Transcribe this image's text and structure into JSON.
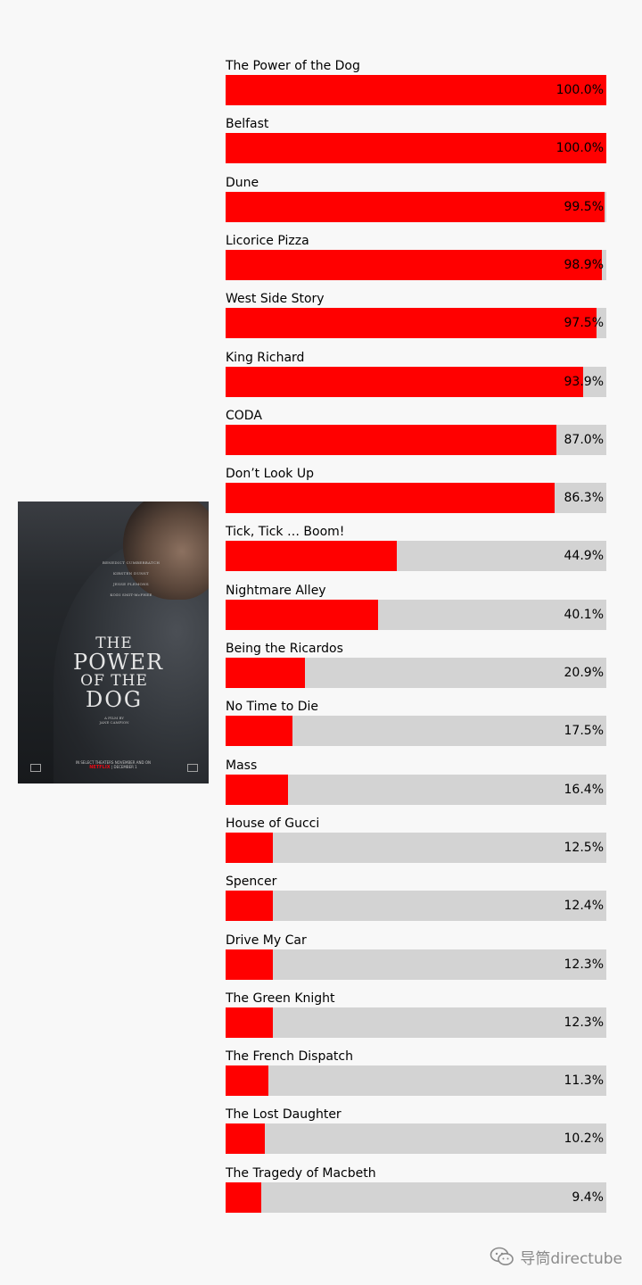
{
  "chart_data": {
    "type": "bar",
    "orientation": "horizontal",
    "categories": [
      "The Power of the Dog",
      "Belfast",
      "Dune",
      "Licorice Pizza",
      "West Side Story",
      "King Richard",
      "CODA",
      "Don’t Look Up",
      "Tick, Tick … Boom!",
      "Nightmare Alley",
      "Being the Ricardos",
      "No Time to Die",
      "Mass",
      "House of Gucci",
      "Spencer",
      "Drive My Car",
      "The Green Knight",
      "The French Dispatch",
      "The Lost Daughter",
      "The Tragedy of Macbeth"
    ],
    "values": [
      100.0,
      100.0,
      99.5,
      98.9,
      97.5,
      93.9,
      87.0,
      86.3,
      44.9,
      40.1,
      20.9,
      17.5,
      16.4,
      12.5,
      12.4,
      12.3,
      12.3,
      11.3,
      10.2,
      9.4
    ],
    "value_labels": [
      "100.0%",
      "100.0%",
      "99.5%",
      "98.9%",
      "97.5%",
      "93.9%",
      "87.0%",
      "86.3%",
      "44.9%",
      "40.1%",
      "20.9%",
      "17.5%",
      "16.4%",
      "12.5%",
      "12.4%",
      "12.3%",
      "12.3%",
      "11.3%",
      "10.2%",
      "9.4%"
    ],
    "xlim": [
      0,
      100
    ],
    "grid": false,
    "bar_color": "#ff0000",
    "track_color": "#d3d3d3"
  },
  "poster": {
    "cast": [
      "BENEDICT CUMBERBATCH",
      "KIRSTEN DUNST",
      "JESSE PLEMONS",
      "KODI SMIT-McPHEE"
    ],
    "title_lines": [
      "THE",
      "POWER",
      "OF THE",
      "DOG"
    ],
    "director_line1": "A FILM BY",
    "director_line2": "JANE CAMPION",
    "release_text": "IN SELECT THEATERS NOVEMBER AND ON",
    "netflix": "NETFLIX",
    "release_date": "DECEMBER 1"
  },
  "watermark": {
    "text": "导筒directube",
    "icon": "wechat-icon"
  },
  "colors": {
    "background": "#f8f8f8",
    "text": "#000000"
  }
}
